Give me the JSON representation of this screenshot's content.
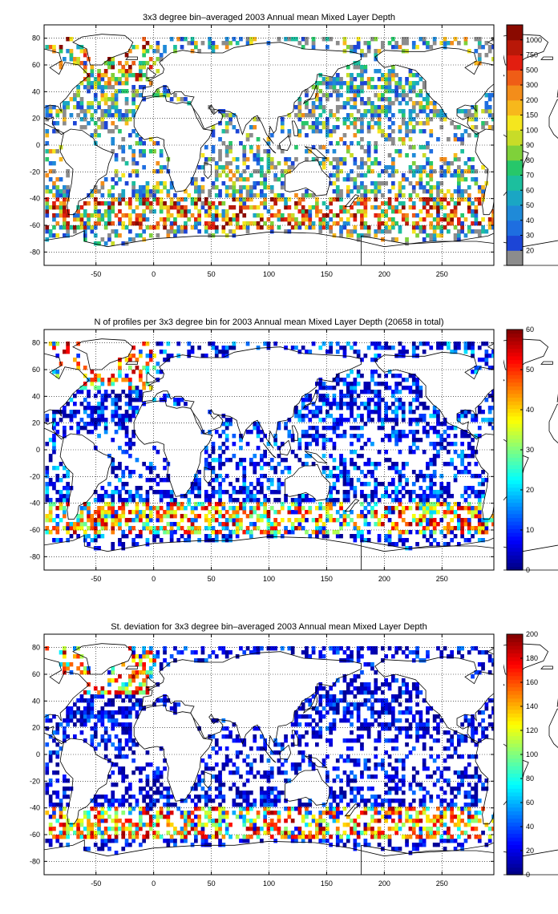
{
  "chart_data": [
    {
      "type": "heatmap",
      "title": "3x3 degree bin–averaged 2003 Annual mean Mixed Layer Depth",
      "xlim": [
        -95,
        295
      ],
      "ylim": [
        -90,
        90
      ],
      "xticks": [
        -50,
        0,
        50,
        100,
        150,
        200,
        250
      ],
      "yticks": [
        80,
        60,
        40,
        20,
        0,
        -20,
        -40,
        -60,
        -80
      ],
      "grid": true,
      "colorbar": {
        "scale": "categorical",
        "labels": [
          "20",
          "30",
          "40",
          "50",
          "60",
          "70",
          "80",
          "90",
          "100",
          "150",
          "200",
          "300",
          "500",
          "750",
          "1000"
        ],
        "colors": [
          "#8c8c8c",
          "#1c45d6",
          "#1e6ee0",
          "#1f8ad8",
          "#1aa6c4",
          "#1cbf9e",
          "#27c76a",
          "#7fd13a",
          "#c8dc28",
          "#f5e61e",
          "#f7b81c",
          "#f38d1a",
          "#ef5d16",
          "#e21e10",
          "#b81808",
          "#8a0a00"
        ]
      },
      "fill_density": 0.55,
      "bias": [
        0.2,
        0.55
      ]
    },
    {
      "type": "heatmap",
      "title": "N of profiles per 3x3 degree bin for 2003 Annual mean Mixed Layer Depth  (20658 in total)",
      "xlim": [
        -95,
        295
      ],
      "ylim": [
        -90,
        90
      ],
      "xticks": [
        -50,
        0,
        50,
        100,
        150,
        200,
        250
      ],
      "yticks": [
        80,
        60,
        40,
        20,
        0,
        -20,
        -40,
        -60,
        -80
      ],
      "grid": true,
      "colorbar": {
        "scale": "linear",
        "range": [
          0,
          60
        ],
        "ticks": [
          0,
          10,
          20,
          30,
          40,
          50,
          60
        ]
      },
      "fill_density": 0.55,
      "bias": [
        0.05,
        0.3
      ]
    },
    {
      "type": "heatmap",
      "title": "St. deviation for 3x3 degree bin–averaged 2003 Annual mean Mixed Layer Depth",
      "xlim": [
        -95,
        295
      ],
      "ylim": [
        -90,
        90
      ],
      "xticks": [
        -50,
        0,
        50,
        100,
        150,
        200,
        250
      ],
      "yticks": [
        80,
        60,
        40,
        20,
        0,
        -20,
        -40,
        -60,
        -80
      ],
      "grid": true,
      "colorbar": {
        "scale": "linear",
        "range": [
          0,
          200
        ],
        "ticks": [
          0,
          20,
          40,
          60,
          80,
          100,
          120,
          140,
          160,
          180,
          200
        ]
      },
      "fill_density": 0.55,
      "bias": [
        0.03,
        0.22
      ]
    }
  ]
}
